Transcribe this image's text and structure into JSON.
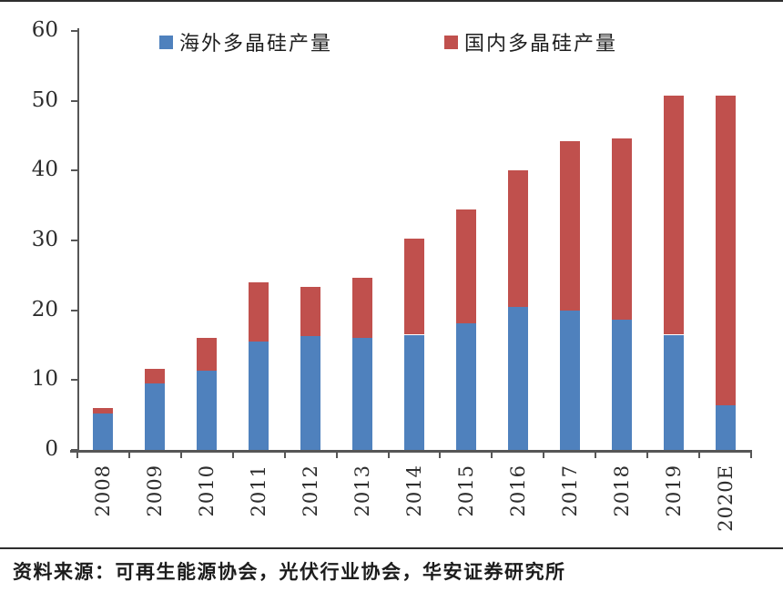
{
  "chart_data": {
    "type": "bar",
    "stacked": true,
    "title": "",
    "xlabel": "",
    "ylabel": "",
    "ylim": [
      0,
      60
    ],
    "yticks": [
      0,
      10,
      20,
      30,
      40,
      50,
      60
    ],
    "grid": false,
    "legend_position": "top",
    "categories": [
      "2008",
      "2009",
      "2010",
      "2011",
      "2012",
      "2013",
      "2014",
      "2015",
      "2016",
      "2017",
      "2018",
      "2019",
      "2020E"
    ],
    "series": [
      {
        "name": "海外多晶硅产量",
        "color": "#4F81BD",
        "values": [
          5.2,
          9.5,
          11.3,
          15.5,
          16.3,
          16.0,
          16.5,
          18.1,
          20.5,
          19.9,
          18.6,
          16.5,
          6.4
        ]
      },
      {
        "name": "国内多晶硅产量",
        "color": "#C0504D",
        "values": [
          0.8,
          2.1,
          4.7,
          8.5,
          7.1,
          8.6,
          13.7,
          16.4,
          19.5,
          24.3,
          26.0,
          34.2,
          44.3
        ]
      }
    ]
  },
  "source_note": "资料来源：可再生能源协会，光伏行业协会，华安证券研究所",
  "colors": {
    "axis": "#565656",
    "text": "#2d2d2d",
    "rule": "#2e2e2e"
  }
}
